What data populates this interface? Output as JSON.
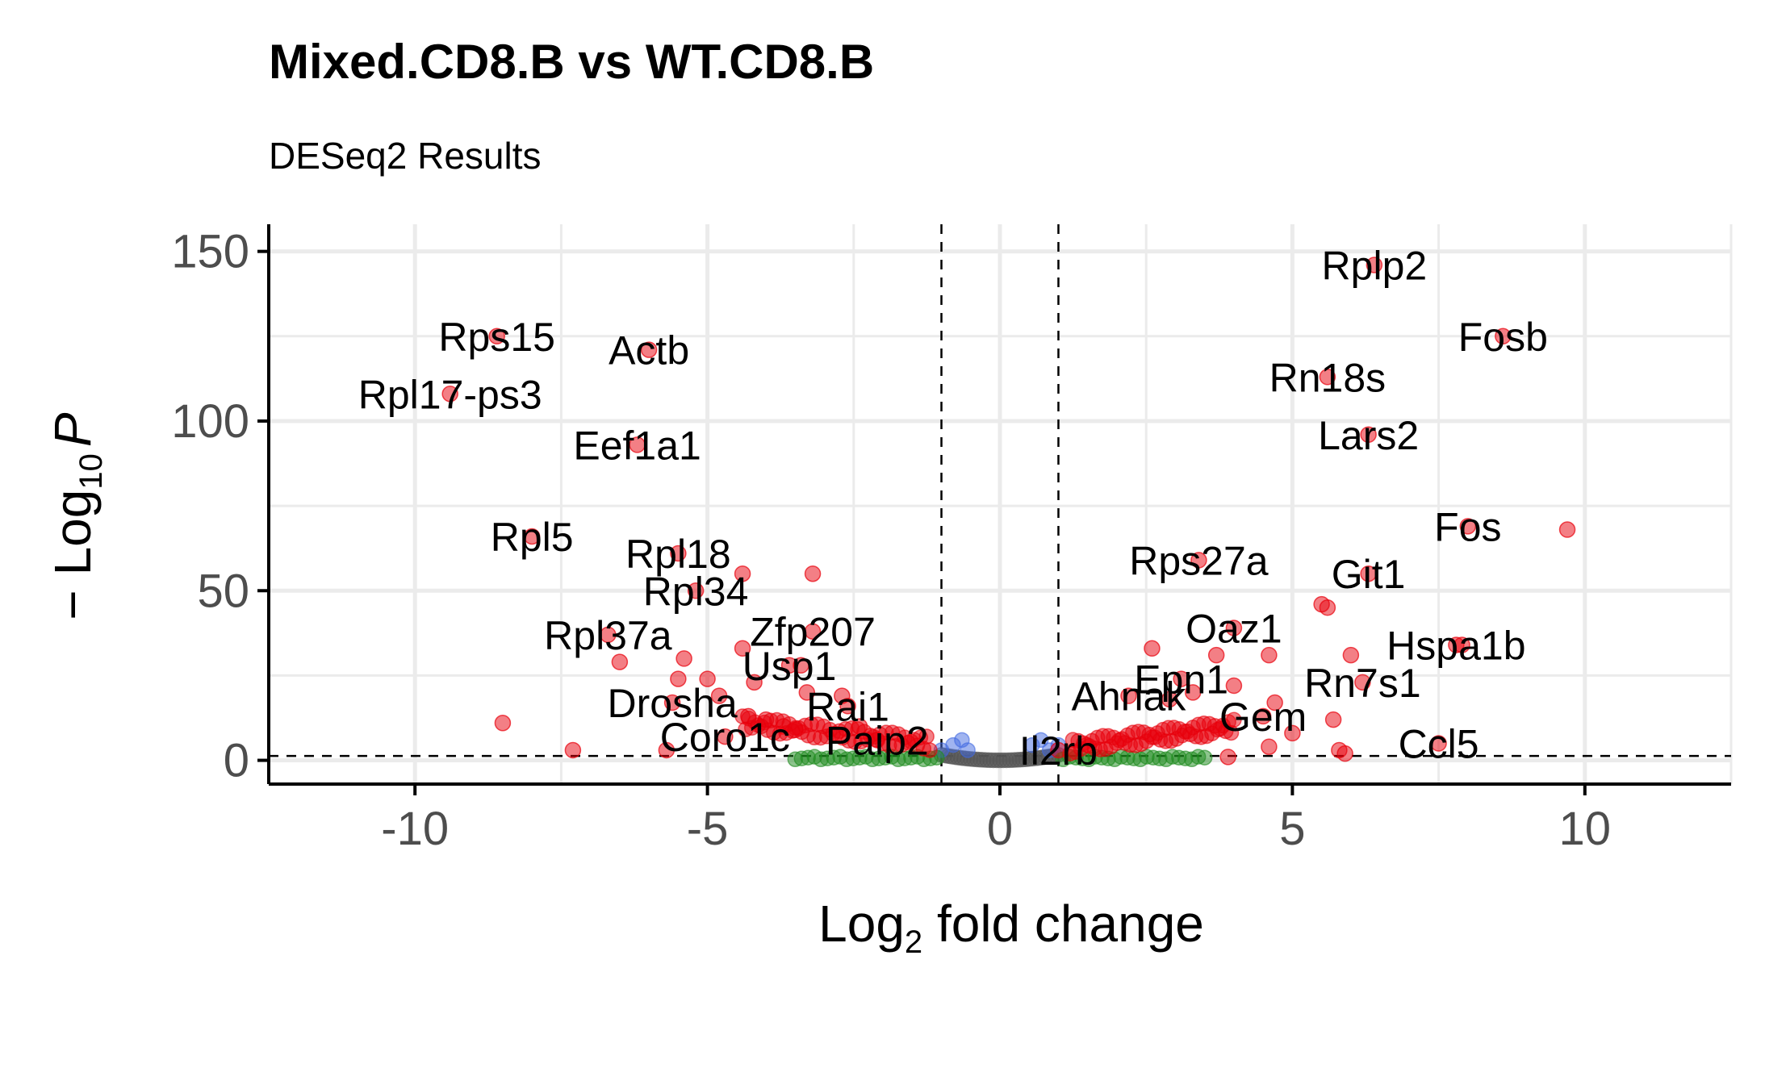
{
  "chart_data": {
    "type": "scatter",
    "title": "Mixed.CD8.B vs WT.CD8.B",
    "subtitle": "DESeq2 Results",
    "xlabel": {
      "main": "Log",
      "sub": "2",
      "rest": " fold change"
    },
    "ylabel": {
      "prefix": "− Log",
      "sub": "10",
      "var": "P"
    },
    "xlim": [
      -12.5,
      12.5
    ],
    "ylim": [
      -7,
      158
    ],
    "xticks": [
      -10,
      -5,
      0,
      5,
      10
    ],
    "xtick_labels": [
      "-10",
      "-5",
      "0",
      "5",
      "10"
    ],
    "yticks": [
      0,
      50,
      100,
      150
    ],
    "ytick_labels": [
      "0",
      "50",
      "100",
      "150"
    ],
    "fc_cutoff": 1,
    "p_cutoff_log10": 1.3,
    "grid": true,
    "legend": "none",
    "colors": {
      "sig_both": "#e8000b",
      "sig_fc": "#1e8b1e",
      "sig_p": "#4169e1",
      "ns": "#555555"
    },
    "labeled_genes": [
      {
        "gene": "Rplp2",
        "x": 6.4,
        "y": 146
      },
      {
        "gene": "Fosb",
        "x": 8.6,
        "y": 125
      },
      {
        "gene": "Rn18s",
        "x": 5.6,
        "y": 113
      },
      {
        "gene": "Lars2",
        "x": 6.3,
        "y": 96
      },
      {
        "gene": "Fos",
        "x": 8.0,
        "y": 69
      },
      {
        "gene": "Rps27a",
        "x": 3.4,
        "y": 59
      },
      {
        "gene": "Git1",
        "x": 6.3,
        "y": 55
      },
      {
        "gene": "Oaz1",
        "x": 4.0,
        "y": 39
      },
      {
        "gene": "Hspa1b",
        "x": 7.8,
        "y": 34
      },
      {
        "gene": "Epn1",
        "x": 3.1,
        "y": 24
      },
      {
        "gene": "Rn7s1",
        "x": 6.2,
        "y": 23
      },
      {
        "gene": "Ahnak",
        "x": 2.2,
        "y": 19
      },
      {
        "gene": "Gem",
        "x": 4.5,
        "y": 13
      },
      {
        "gene": "Ccl5",
        "x": 7.5,
        "y": 5
      },
      {
        "gene": "Il2rb",
        "x": 1.0,
        "y": 3
      },
      {
        "gene": "Rps15",
        "x": -8.6,
        "y": 125
      },
      {
        "gene": "Actb",
        "x": -6.0,
        "y": 121
      },
      {
        "gene": "Rpl17-ps3",
        "x": -9.4,
        "y": 108
      },
      {
        "gene": "Eef1a1",
        "x": -6.2,
        "y": 93
      },
      {
        "gene": "Rpl5",
        "x": -8.0,
        "y": 66
      },
      {
        "gene": "Rpl18",
        "x": -5.5,
        "y": 61
      },
      {
        "gene": "Rpl34",
        "x": -5.2,
        "y": 50
      },
      {
        "gene": "Rpl37a",
        "x": -6.7,
        "y": 37
      },
      {
        "gene": "Zfp207",
        "x": -3.2,
        "y": 38
      },
      {
        "gene": "Usp1",
        "x": -3.6,
        "y": 28
      },
      {
        "gene": "Drosha",
        "x": -5.6,
        "y": 17
      },
      {
        "gene": "Rai1",
        "x": -2.6,
        "y": 16
      },
      {
        "gene": "Coro1c",
        "x": -4.7,
        "y": 7
      },
      {
        "gene": "Paip2",
        "x": -2.1,
        "y": 6
      }
    ],
    "other_points": [
      {
        "x": 9.7,
        "y": 68
      },
      {
        "x": 7.9,
        "y": 34
      },
      {
        "x": 5.5,
        "y": 46
      },
      {
        "x": 5.6,
        "y": 45
      },
      {
        "x": 6.0,
        "y": 31
      },
      {
        "x": 4.6,
        "y": 31
      },
      {
        "x": 3.7,
        "y": 31
      },
      {
        "x": 2.6,
        "y": 33
      },
      {
        "x": 5.7,
        "y": 12
      },
      {
        "x": 5.0,
        "y": 8
      },
      {
        "x": 4.6,
        "y": 4
      },
      {
        "x": 5.8,
        "y": 3
      },
      {
        "x": 5.9,
        "y": 2
      },
      {
        "x": 3.9,
        "y": 1
      },
      {
        "x": 4.0,
        "y": 22
      },
      {
        "x": 4.7,
        "y": 17
      },
      {
        "x": 3.3,
        "y": 20
      },
      {
        "x": 2.9,
        "y": 18
      },
      {
        "x": -8.5,
        "y": 11
      },
      {
        "x": -7.3,
        "y": 3
      },
      {
        "x": -6.5,
        "y": 29
      },
      {
        "x": -5.4,
        "y": 30
      },
      {
        "x": -5.5,
        "y": 24
      },
      {
        "x": -5.0,
        "y": 24
      },
      {
        "x": -4.8,
        "y": 19
      },
      {
        "x": -4.4,
        "y": 55
      },
      {
        "x": -3.2,
        "y": 55
      },
      {
        "x": -4.4,
        "y": 33
      },
      {
        "x": -4.2,
        "y": 23
      },
      {
        "x": -3.4,
        "y": 28
      },
      {
        "x": -3.3,
        "y": 20
      },
      {
        "x": -2.7,
        "y": 19
      },
      {
        "x": -5.7,
        "y": 3
      },
      {
        "x": -4.0,
        "y": 12
      },
      {
        "x": -3.7,
        "y": 10
      },
      {
        "x": -3.5,
        "y": 9
      },
      {
        "x": -2.4,
        "y": 10
      },
      {
        "x": -4.3,
        "y": 13
      }
    ]
  }
}
